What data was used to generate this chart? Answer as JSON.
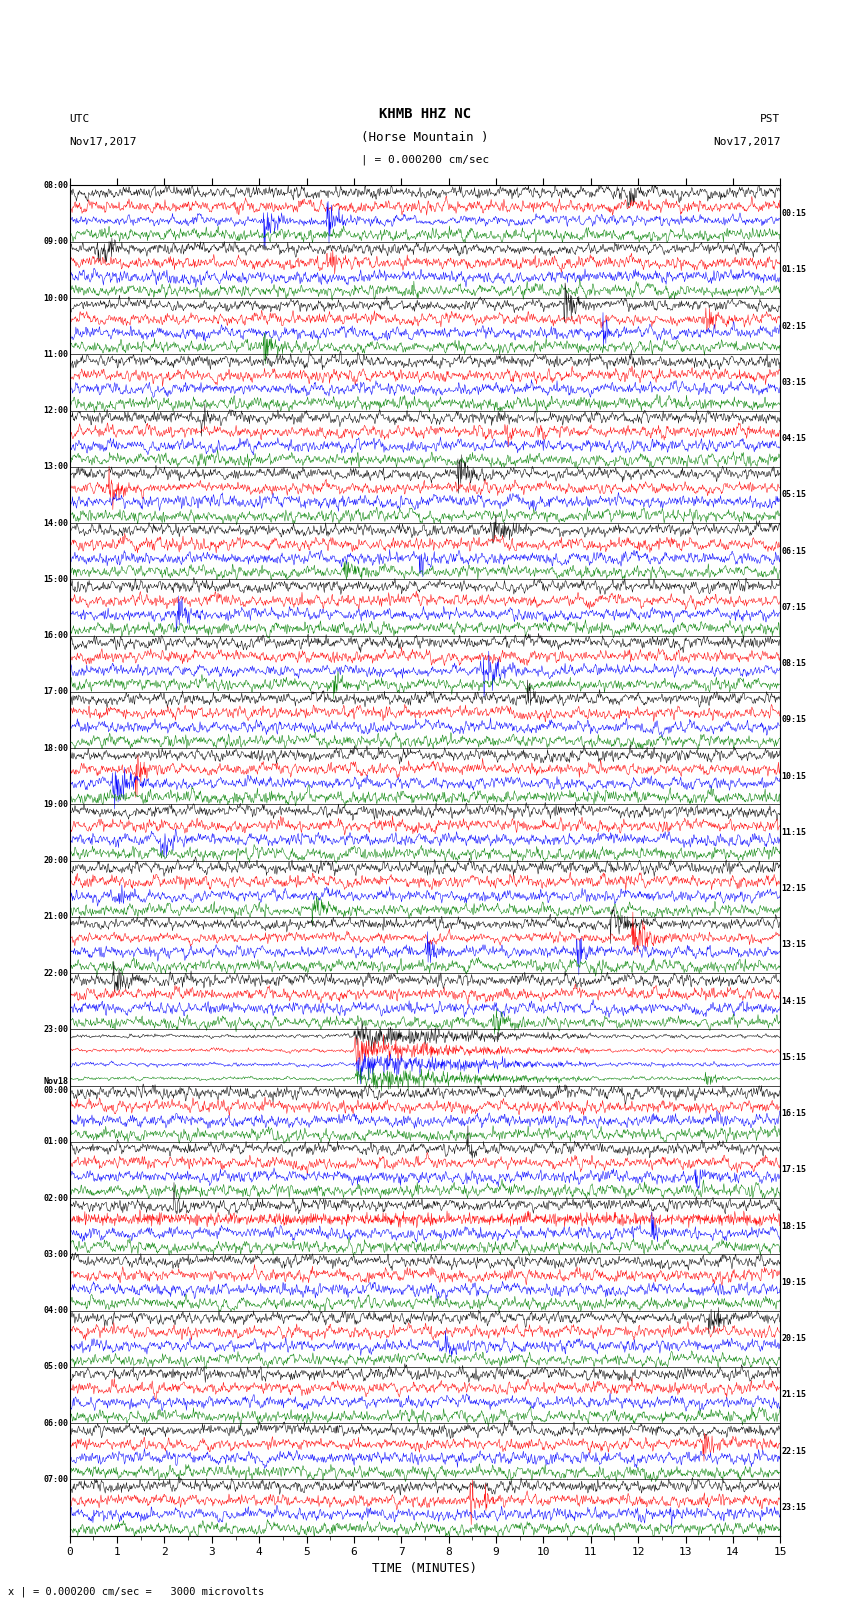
{
  "title_line1": "KHMB HHZ NC",
  "title_line2": "(Horse Mountain )",
  "title_line3": "| = 0.000200 cm/sec",
  "label_left_top": "UTC",
  "label_left_date": "Nov17,2017",
  "label_right_top": "PST",
  "label_right_date": "Nov17,2017",
  "xlabel": "TIME (MINUTES)",
  "footer": "x | = 0.000200 cm/sec =   3000 microvolts",
  "time_labels_left": [
    "08:00",
    "09:00",
    "10:00",
    "11:00",
    "12:00",
    "13:00",
    "14:00",
    "15:00",
    "16:00",
    "17:00",
    "18:00",
    "19:00",
    "20:00",
    "21:00",
    "22:00",
    "23:00",
    "Nov18\n00:00",
    "01:00",
    "02:00",
    "03:00",
    "04:00",
    "05:00",
    "06:00",
    "07:00"
  ],
  "time_labels_right": [
    "00:15",
    "01:15",
    "02:15",
    "03:15",
    "04:15",
    "05:15",
    "06:15",
    "07:15",
    "08:15",
    "09:15",
    "10:15",
    "11:15",
    "12:15",
    "13:15",
    "14:15",
    "15:15",
    "16:15",
    "17:15",
    "18:15",
    "19:15",
    "20:15",
    "21:15",
    "22:15",
    "23:15"
  ],
  "n_rows": 24,
  "traces_per_row": 4,
  "colors": [
    "black",
    "red",
    "blue",
    "green"
  ],
  "bg_color": "white",
  "xlim": [
    0,
    15
  ],
  "xticks": [
    0,
    1,
    2,
    3,
    4,
    5,
    6,
    7,
    8,
    9,
    10,
    11,
    12,
    13,
    14,
    15
  ],
  "fig_width": 8.5,
  "fig_height": 16.13,
  "dpi": 100
}
